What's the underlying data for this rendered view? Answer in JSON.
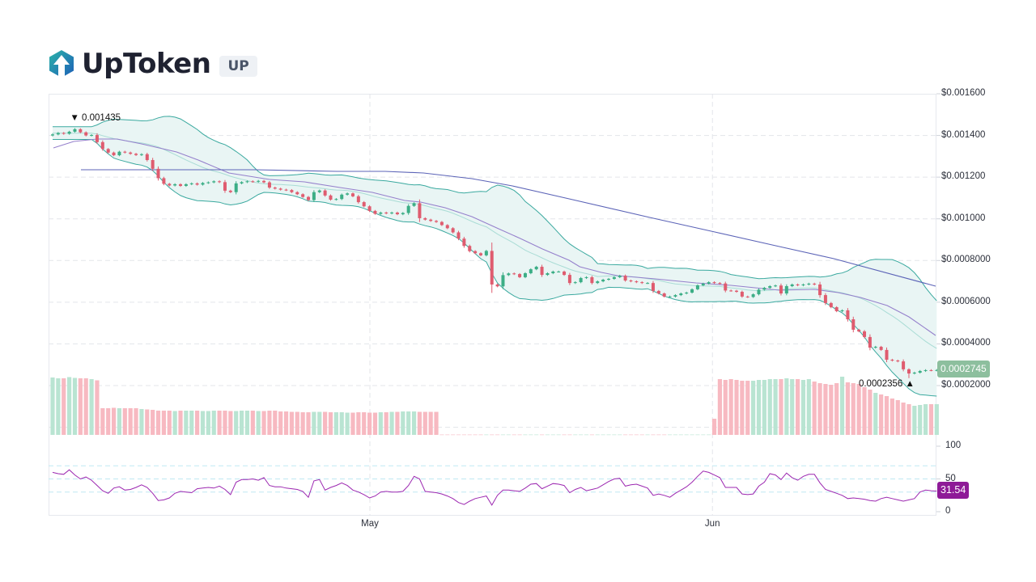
{
  "header": {
    "title": "UpToken",
    "ticker": "UP",
    "logo_icon": "uptoken-hexagon-arrow-logo",
    "logo_colors": [
      "#2bb3a8",
      "#1e5fb8"
    ]
  },
  "chart_data": {
    "type": "candlestick",
    "title": "UpToken (UP)",
    "layout": {
      "price_axis_position": "right",
      "grid": true,
      "panes": [
        "price+volume",
        "rsi"
      ]
    },
    "x_axis": {
      "ticks": [
        {
          "label": "May",
          "index": 57.5
        },
        {
          "label": "Jun",
          "index": 119.1
        }
      ]
    },
    "price_axis": {
      "min": 0.0002,
      "max": 0.0016,
      "step": 0.0002,
      "ticks": [
        {
          "label": "$0.001600",
          "value": 0.0016
        },
        {
          "label": "$0.001400",
          "value": 0.0014
        },
        {
          "label": "$0.001200",
          "value": 0.0012
        },
        {
          "label": "$0.001000",
          "value": 0.001
        },
        {
          "label": "$0.0008000",
          "value": 0.0008
        },
        {
          "label": "$0.0006000",
          "value": 0.0006
        },
        {
          "label": "$0.0004000",
          "value": 0.0004
        },
        {
          "label": "$0.0002000",
          "value": 0.0002
        }
      ]
    },
    "colors": {
      "up": "#3cae86",
      "down": "#df5c6f",
      "volume_up": "#b9e4d2",
      "volume_down": "#f7b9c1",
      "bb_line": "#3aa99f",
      "bb_fill": "#e9f5f4",
      "bb_mid": "#a9dcd5",
      "grid": "#e3e5ea",
      "rsi_line": "#9c27b0",
      "rsi_levels": "#bfe8f2"
    },
    "candles": {
      "first_open": 0.0014,
      "close": [
        0.001405,
        0.001412,
        0.001408,
        0.001418,
        0.00143,
        0.001415,
        0.0014,
        0.001402,
        0.001368,
        0.001335,
        0.001318,
        0.001305,
        0.001322,
        0.001318,
        0.001312,
        0.001306,
        0.00131,
        0.001282,
        0.00124,
        0.001195,
        0.001168,
        0.00116,
        0.001166,
        0.001158,
        0.001166,
        0.00117,
        0.001164,
        0.001172,
        0.001175,
        0.00118,
        0.001176,
        0.001135,
        0.001128,
        0.00117,
        0.001176,
        0.00118,
        0.001178,
        0.001182,
        0.001175,
        0.00115,
        0.001145,
        0.00114,
        0.001138,
        0.001128,
        0.001118,
        0.001105,
        0.00109,
        0.001128,
        0.001136,
        0.001112,
        0.001092,
        0.001095,
        0.001116,
        0.001122,
        0.001108,
        0.00108,
        0.00106,
        0.001038,
        0.001024,
        0.00103,
        0.001026,
        0.00103,
        0.001022,
        0.001028,
        0.001062,
        0.001075,
        0.001003,
        0.000996,
        0.00099,
        0.000985,
        0.00097,
        0.000955,
        0.000935,
        0.000905,
        0.00087,
        0.000845,
        0.000835,
        0.000825,
        0.000846,
        0.000685,
        0.000676,
        0.00073,
        0.000738,
        0.000735,
        0.00072,
        0.000739,
        0.000758,
        0.00077,
        0.000731,
        0.000739,
        0.000747,
        0.000747,
        0.000731,
        0.000692,
        0.000696,
        0.000716,
        0.00072,
        0.000692,
        0.0007,
        0.000708,
        0.000712,
        0.00072,
        0.000727,
        0.000704,
        0.0007,
        0.000696,
        0.000692,
        0.000692,
        0.000654,
        0.000642,
        0.000627,
        0.000627,
        0.000634,
        0.000642,
        0.000646,
        0.000662,
        0.000681,
        0.000689,
        0.000696,
        0.000692,
        0.00069,
        0.000656,
        0.000655,
        0.00065,
        0.000627,
        0.000625,
        0.000638,
        0.00066,
        0.000669,
        0.000677,
        0.00068,
        0.000642,
        0.000677,
        0.000685,
        0.000681,
        0.000685,
        0.000689,
        0.000685,
        0.000634,
        0.000596,
        0.000576,
        0.000557,
        0.000561,
        0.000518,
        0.000468,
        0.00046,
        0.000433,
        0.000382,
        0.000386,
        0.000371,
        0.000324,
        0.00032,
        0.000316,
        0.000278,
        0.000258,
        0.000262,
        0.00027,
        0.000274,
        0.000273,
        0.0002745
      ]
    },
    "volume": [
      710,
      700,
      700,
      715,
      705,
      700,
      700,
      690,
      675,
      330,
      330,
      335,
      330,
      330,
      330,
      330,
      320,
      315,
      310,
      300,
      300,
      300,
      295,
      300,
      300,
      300,
      300,
      295,
      295,
      300,
      300,
      300,
      295,
      295,
      300,
      300,
      300,
      295,
      295,
      300,
      300,
      290,
      290,
      285,
      285,
      280,
      280,
      285,
      285,
      285,
      280,
      280,
      280,
      275,
      275,
      280,
      280,
      275,
      275,
      280,
      280,
      285,
      285,
      290,
      290,
      290,
      285,
      285,
      285,
      285,
      4,
      4,
      4,
      4,
      4,
      4,
      4,
      4,
      4,
      4,
      4,
      4,
      4,
      4,
      4,
      4,
      4,
      4,
      4,
      4,
      4,
      4,
      4,
      4,
      4,
      4,
      4,
      4,
      4,
      4,
      4,
      4,
      4,
      4,
      4,
      4,
      4,
      4,
      4,
      4,
      4,
      4,
      4,
      4,
      4,
      4,
      4,
      4,
      4,
      200,
      690,
      680,
      690,
      680,
      670,
      670,
      670,
      680,
      680,
      690,
      690,
      690,
      700,
      690,
      690,
      680,
      690,
      660,
      640,
      630,
      620,
      640,
      720,
      650,
      640,
      630,
      590,
      560,
      520,
      500,
      480,
      450,
      430,
      400,
      380,
      360,
      370,
      380,
      380,
      380
    ],
    "bollinger": {
      "period": 20,
      "std_dev": 2
    },
    "moving_averages": [
      {
        "id": "ma_short",
        "color": "#9580cc",
        "points": [
          [
            0.15,
            0.0013402
          ],
          [
            3.8,
            0.0013712
          ],
          [
            8.0,
            0.0013828
          ],
          [
            11.6,
            0.0013828
          ],
          [
            16.0,
            0.0013596
          ],
          [
            22.3,
            0.0013208
          ],
          [
            26.2,
            0.001282
          ],
          [
            31.7,
            0.0012199
          ],
          [
            39.0,
            0.0011889
          ],
          [
            45.3,
            0.0011773
          ],
          [
            51.7,
            0.0011501
          ],
          [
            57.5,
            0.0011269
          ],
          [
            63.3,
            0.0010881
          ],
          [
            66.2,
            0.0010803
          ],
          [
            70.6,
            0.0010532
          ],
          [
            75.4,
            0.0010105
          ],
          [
            80.2,
            0.0009524
          ],
          [
            84.1,
            0.0009058
          ],
          [
            88.1,
            0.0008554
          ],
          [
            92.9,
            0.0008011
          ],
          [
            94.8,
            0.0007701
          ],
          [
            98.7,
            0.0007429
          ],
          [
            101.6,
            0.0007274
          ],
          [
            108.4,
            0.0007119
          ],
          [
            115.7,
            0.0006925
          ],
          [
            122.0,
            0.0006809
          ],
          [
            130.7,
            0.0006576
          ],
          [
            137.0,
            0.0006615
          ],
          [
            141.3,
            0.000646
          ],
          [
            145.3,
            0.0006227
          ],
          [
            150.1,
            0.0005839
          ],
          [
            154.0,
            0.0005296
          ],
          [
            158.8,
            0.0004404
          ]
        ]
      },
      {
        "id": "ma_long",
        "color": "#5b63b7",
        "points": [
          [
            5.1,
            0.0012355
          ],
          [
            36.5,
            0.0012355
          ],
          [
            51.1,
            0.0012277
          ],
          [
            59.8,
            0.0012277
          ],
          [
            66.7,
            0.0012199
          ],
          [
            75.4,
            0.0011928
          ],
          [
            82.7,
            0.0011579
          ],
          [
            92.9,
            0.0010958
          ],
          [
            107.4,
            0.0010066
          ],
          [
            119.1,
            0.0009368
          ],
          [
            130.7,
            0.000867
          ],
          [
            140.5,
            0.0008089
          ],
          [
            158.8,
            0.000677
          ]
        ]
      }
    ],
    "annotations": {
      "high": {
        "label": "0.001435",
        "value": 0.001435,
        "index": 4,
        "arrow": "▼"
      },
      "low": {
        "label": "0.0002356",
        "value": 0.0002356,
        "index": 154,
        "arrow": "▲"
      },
      "last_price": {
        "label": "0.0002745",
        "value": 0.0002745,
        "color": "#8dbf9e"
      }
    },
    "rsi": {
      "ticks": [
        {
          "label": "100",
          "value": 100
        },
        {
          "label": "50",
          "value": 50
        },
        {
          "label": "0",
          "value": 0
        }
      ],
      "levels": [
        70,
        50,
        30
      ],
      "last_label": "31.54",
      "last_color": "#8e1a97",
      "values": [
        60,
        58,
        57,
        64,
        56,
        50,
        53,
        48,
        40,
        32,
        28,
        36,
        38,
        33,
        34,
        37,
        41,
        37,
        28,
        17,
        18,
        21,
        28,
        31,
        30,
        29,
        35,
        36,
        37,
        36,
        39,
        34,
        26,
        45,
        49,
        49,
        50,
        48,
        52,
        40,
        38,
        38,
        36,
        35,
        34,
        31,
        22,
        47,
        49,
        33,
        37,
        40,
        44,
        40,
        33,
        30,
        26,
        21,
        24,
        30,
        31,
        30,
        30,
        31,
        40,
        54,
        50,
        31,
        30,
        29,
        27,
        24,
        20,
        14,
        11,
        16,
        20,
        22,
        24,
        10,
        25,
        33,
        33,
        32,
        31,
        36,
        42,
        43,
        35,
        39,
        43,
        42,
        40,
        29,
        34,
        37,
        32,
        34,
        36,
        41,
        46,
        50,
        51,
        39,
        41,
        42,
        39,
        36,
        25,
        27,
        25,
        22,
        28,
        33,
        38,
        45,
        54,
        62,
        60,
        56,
        52,
        37,
        37,
        37,
        27,
        26,
        27,
        39,
        45,
        58,
        56,
        49,
        59,
        52,
        48,
        54,
        57,
        57,
        44,
        34,
        31,
        28,
        25,
        20,
        21,
        20,
        19,
        17,
        16,
        20,
        22,
        20,
        18,
        16,
        18,
        20,
        30,
        33,
        32,
        31.54
      ]
    }
  }
}
